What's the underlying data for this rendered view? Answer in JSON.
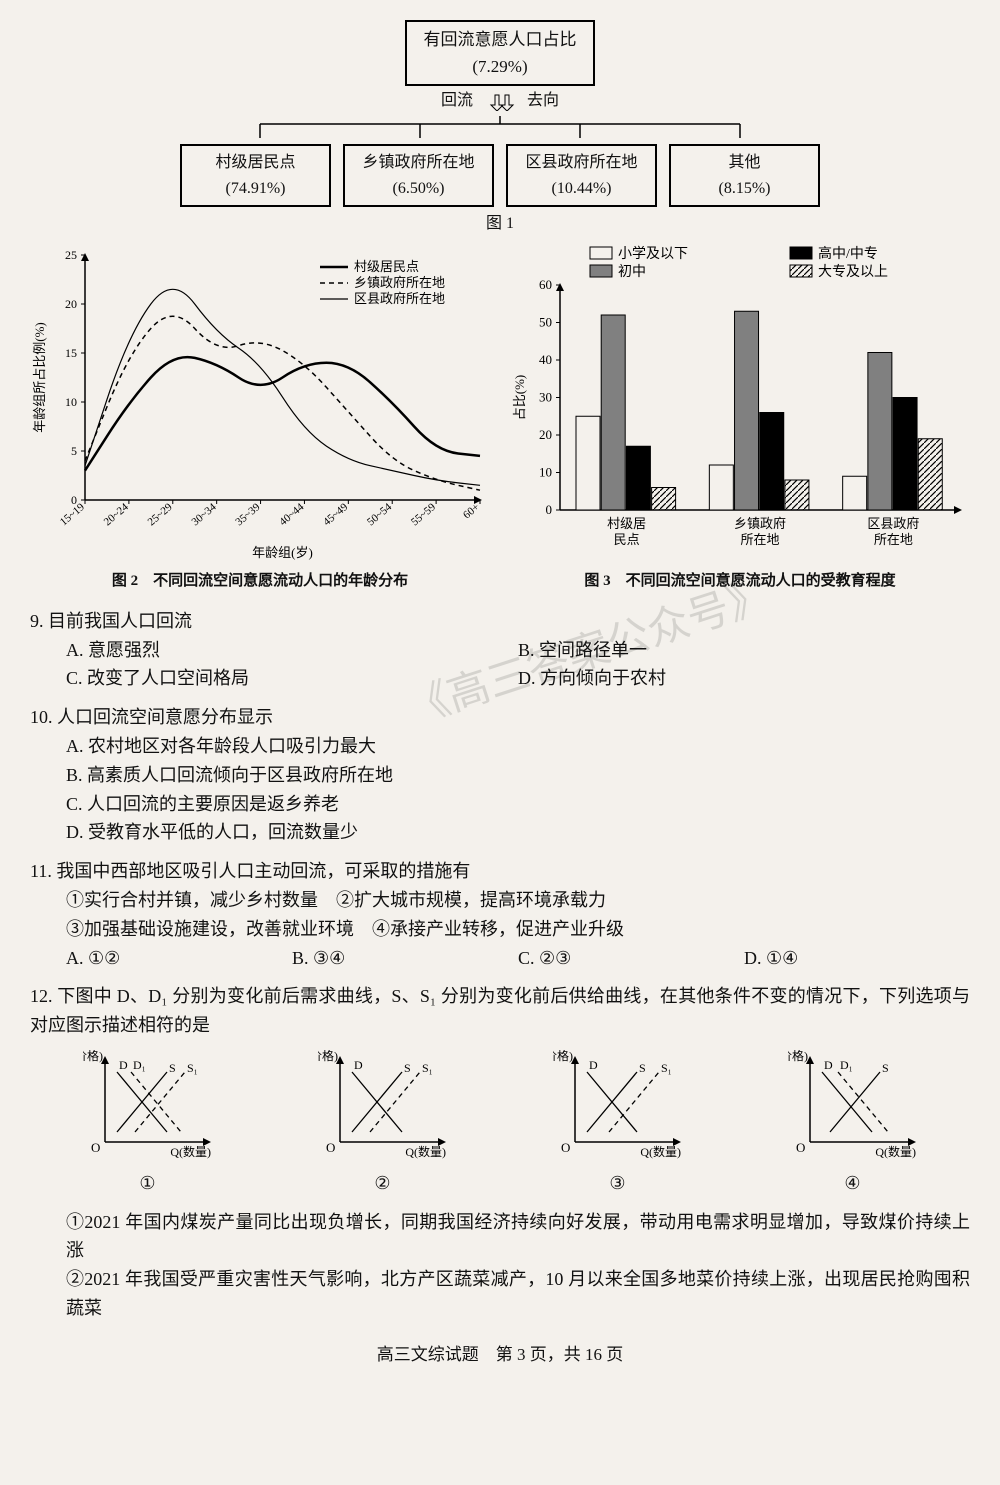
{
  "hierarchy": {
    "top": {
      "label": "有回流意愿人口占比",
      "value": "(7.29%)"
    },
    "arrow_left": "回流",
    "arrow_right": "去向",
    "children": [
      {
        "label": "村级居民点",
        "value": "(74.91%)"
      },
      {
        "label": "乡镇政府所在地",
        "value": "(6.50%)"
      },
      {
        "label": "区县政府所在地",
        "value": "(10.44%)"
      },
      {
        "label": "其他",
        "value": "(8.15%)"
      }
    ],
    "caption": "图 1"
  },
  "line_chart": {
    "type": "line",
    "xlabel": "年龄组(岁)",
    "ylabel": "年龄组所占比例(%)",
    "caption": "图 2　不同回流空间意愿流动人口的年龄分布",
    "x_categories": [
      "15~19",
      "20~24",
      "25~29",
      "30~34",
      "35~39",
      "40~44",
      "45~49",
      "50~54",
      "55~59",
      "60+"
    ],
    "ylim": [
      0,
      25
    ],
    "ytick_step": 5,
    "legend": [
      {
        "name": "村级居民点",
        "style": "solid_thick",
        "color": "#000000"
      },
      {
        "name": "乡镇政府所在地",
        "style": "dashed",
        "color": "#000000"
      },
      {
        "name": "区县政府所在地",
        "style": "solid_thin",
        "color": "#000000"
      }
    ],
    "series": {
      "村级居民点": [
        3,
        10,
        15,
        14,
        11,
        14,
        14,
        10,
        5,
        4.5
      ],
      "乡镇政府所在地": [
        4,
        15,
        20,
        15,
        16.5,
        14,
        9,
        4,
        2,
        1
      ],
      "区县政府所在地": [
        3.5,
        17,
        23,
        17,
        14,
        7,
        4,
        3,
        2,
        1.5
      ]
    },
    "axis_color": "#000000",
    "grid": false,
    "background": "#f4f1ec",
    "label_fontsize": 13,
    "tick_fontsize": 12
  },
  "bar_chart": {
    "type": "grouped_bar",
    "ylabel": "占比(%)",
    "caption": "图 3　不同回流空间意愿流动人口的受教育程度",
    "x_groups": [
      "村级居\n民点",
      "乡镇政府\n所在地",
      "区县政府\n所在地"
    ],
    "ylim": [
      0,
      60
    ],
    "ytick_step": 10,
    "legend": [
      {
        "name": "小学及以下",
        "fill": "none",
        "pattern": "none"
      },
      {
        "name": "初中",
        "fill": "#808080",
        "pattern": "none"
      },
      {
        "name": "高中/中专",
        "fill": "#000000",
        "pattern": "none"
      },
      {
        "name": "大专及以上",
        "fill": "none",
        "pattern": "hatch"
      }
    ],
    "data": {
      "小学及以下": [
        25,
        12,
        9
      ],
      "初中": [
        52,
        53,
        42
      ],
      "高中/中专": [
        17,
        26,
        30
      ],
      "大专及以上": [
        6,
        8,
        19
      ]
    },
    "bar_colors": {
      "小学及以下": "#f4f1ec",
      "初中": "#808080",
      "高中/中专": "#000000",
      "大专及以上": "#f4f1ec"
    },
    "axis_color": "#000000",
    "background": "#f4f1ec",
    "label_fontsize": 13,
    "tick_fontsize": 13
  },
  "q9": {
    "stem": "9. 目前我国人口回流",
    "A": "A. 意愿强烈",
    "B": "B. 空间路径单一",
    "C": "C. 改变了人口空间格局",
    "D": "D. 方向倾向于农村"
  },
  "q10": {
    "stem": "10. 人口回流空间意愿分布显示",
    "A": "A. 农村地区对各年龄段人口吸引力最大",
    "B": "B. 高素质人口回流倾向于区县政府所在地",
    "C": "C. 人口回流的主要原因是返乡养老",
    "D": "D. 受教育水平低的人口，回流数量少"
  },
  "q11": {
    "stem": "11. 我国中西部地区吸引人口主动回流，可采取的措施有",
    "s1": "①实行合村并镇，减少乡村数量　②扩大城市规模，提高环境承载力",
    "s2": "③加强基础设施建设，改善就业环境　④承接产业转移，促进产业升级",
    "A": "A. ①②",
    "B": "B. ③④",
    "C": "C. ②③",
    "D": "D. ①④"
  },
  "q12": {
    "stem": "12. 下图中 D、D₁ 分别为变化前后需求曲线，S、S₁ 分别为变化前后供给曲线，在其他条件不变的情况下，下列选项与对应图示描述相符的是",
    "diagrams": [
      {
        "num": "①",
        "d": true,
        "d1": true,
        "s": true,
        "s1": true,
        "d_shift": "right",
        "s_shift": "right"
      },
      {
        "num": "②",
        "d": true,
        "d1": false,
        "s": true,
        "s1": true,
        "s_shift": "right"
      },
      {
        "num": "③",
        "d": true,
        "d1": false,
        "s": true,
        "s1": true,
        "s_shift": "right_more"
      },
      {
        "num": "④",
        "d": true,
        "d1": true,
        "s": true,
        "s1": false,
        "d_shift": "right"
      }
    ],
    "axis_y": "P(价格)",
    "axis_x": "Q(数量)",
    "p1": "①2021 年国内煤炭产量同比出现负增长，同期我国经济持续向好发展，带动用电需求明显增加，导致煤价持续上涨",
    "p2": "②2021 年我国受严重灾害性天气影响，北方产区蔬菜减产，10 月以来全国多地菜价持续上涨，出现居民抢购囤积蔬菜"
  },
  "footer": "高三文综试题　第 3 页，共 16 页",
  "watermark": "《高三答案公众号》"
}
